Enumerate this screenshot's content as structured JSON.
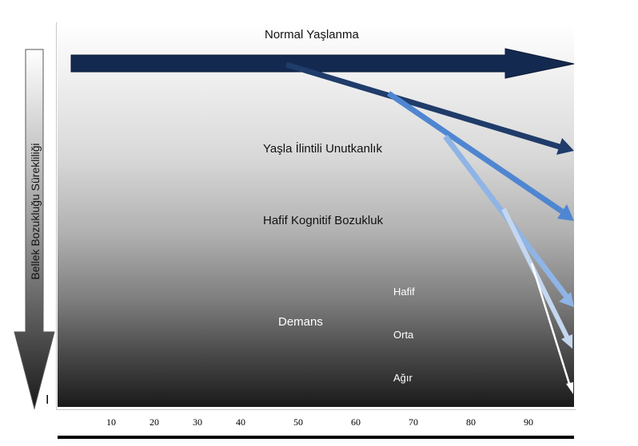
{
  "stages": {
    "normal": "Normal Yaşlanma",
    "age_forgetfulness": "Yaşla İlintili Unutkanlık",
    "mci": "Hafif Kognitif Bozukluk",
    "dementia": "Demans"
  },
  "severity": {
    "mild": "Hafif",
    "moderate": "Orta",
    "severe": "Ağır"
  },
  "y_axis_title": "Bellek Bozukluğu Sürekliliği",
  "y_axis_marker": "I",
  "x_ticks": [
    "10",
    "20",
    "30",
    "40",
    "50",
    "60",
    "70",
    "80",
    "90"
  ],
  "colors": {
    "normal_arrow": "#13294f",
    "forgetfulness_arrow": "#1f3c6a",
    "mci_arrow": "#4f86d1",
    "dementia_mild_arrow": "#8fb4e6",
    "dementia_moderate_arrow": "#c4d7f0",
    "dementia_severe_arrow": "#ffffff"
  }
}
